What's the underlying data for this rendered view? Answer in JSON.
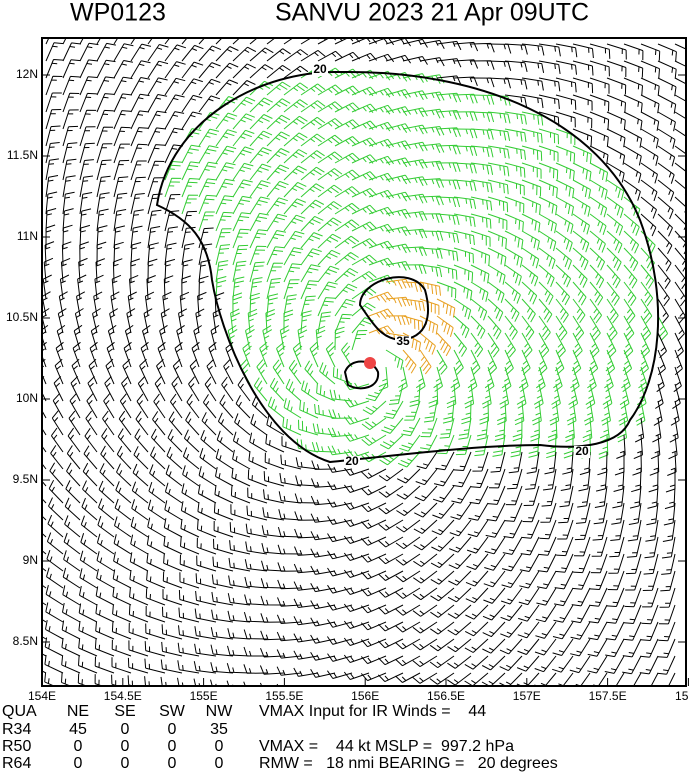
{
  "header": {
    "id": "WP0123",
    "title": "SANVU 2023 21 Apr 09UTC"
  },
  "map": {
    "lat_labels": [
      "12N",
      "11.5N",
      "11N",
      "10.5N",
      "10N",
      "9.5N",
      "9N",
      "8.5N"
    ],
    "lon_labels": [
      "154E",
      "154.5E",
      "155E",
      "155.5E",
      "156E",
      "156.5E",
      "157E",
      "157.5E",
      "15"
    ],
    "contour_labels": [
      "20",
      "35",
      "20",
      "20"
    ]
  },
  "table": {
    "header": [
      "QUA",
      "NE",
      "SE",
      "SW",
      "NW"
    ],
    "rows": [
      [
        "R34",
        "45",
        "0",
        "0",
        "35"
      ],
      [
        "R50",
        "0",
        "0",
        "0",
        "0"
      ],
      [
        "R64",
        "0",
        "0",
        "0",
        "0"
      ]
    ]
  },
  "notes": [
    "VMAX Input for IR Winds =    44",
    "VMAX =    44 kt MSLP =  997.2 hPa",
    "RMW =   18 nmi BEARING =   20 degrees"
  ]
}
